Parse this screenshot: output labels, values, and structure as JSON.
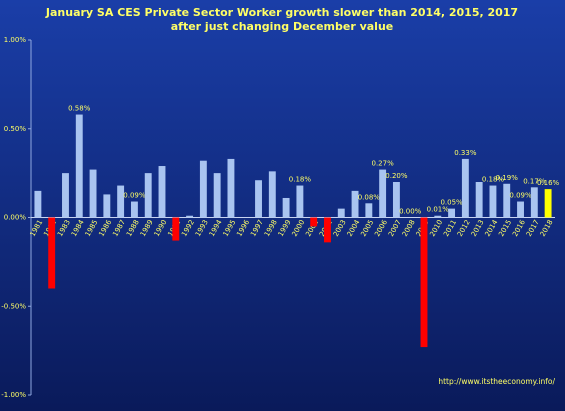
{
  "chart_data": {
    "type": "bar",
    "title": "January SA CES Private Sector Worker growth slower than 2014, 2015, 2017",
    "subtitle": "after just changing December value",
    "source": "http://www.itstheeconomy.info/",
    "categories": [
      "1981",
      "1982",
      "1983",
      "1984",
      "1985",
      "1986",
      "1987",
      "1988",
      "1989",
      "1990",
      "1991",
      "1992",
      "1993",
      "1994",
      "1995",
      "1996",
      "1997",
      "1998",
      "1999",
      "2000",
      "2001",
      "2002",
      "2003",
      "2004",
      "2005",
      "2006",
      "2007",
      "2008",
      "2009",
      "2010",
      "2011",
      "2012",
      "2013",
      "2014",
      "2015",
      "2016",
      "2017",
      "2018"
    ],
    "values": [
      0.15,
      -0.4,
      0.25,
      0.58,
      0.27,
      0.13,
      0.18,
      0.09,
      0.25,
      0.29,
      -0.13,
      0.01,
      0.32,
      0.25,
      0.33,
      0,
      0.21,
      0.26,
      0.11,
      0.18,
      -0.05,
      -0.14,
      0.05,
      0.15,
      0.08,
      0.27,
      0.2,
      0.0,
      -0.73,
      0.01,
      0.05,
      0.33,
      0.2,
      0.18,
      0.19,
      0.09,
      0.17,
      0.16
    ],
    "value_labels": [
      null,
      null,
      null,
      "0.58%",
      null,
      null,
      null,
      "0.09%",
      null,
      null,
      null,
      null,
      null,
      null,
      null,
      null,
      null,
      null,
      null,
      "0.18%",
      null,
      null,
      null,
      null,
      "0.08%",
      "0.27%",
      "0.20%",
      "0.00%",
      null,
      "0.01%",
      "0.05%",
      "0.33%",
      null,
      "0.18%",
      "0.19%",
      "0.09%",
      "0.17%",
      "0.16%"
    ],
    "color": "#a9c4f0",
    "negative_color": "#ff0000",
    "highlight_color": "#ffff00",
    "highlight_index": 37,
    "ylim": [
      -1,
      1
    ],
    "yticks": [
      {
        "value": -1,
        "label": "-1.00%"
      },
      {
        "value": -0.5,
        "label": "-0.50%"
      },
      {
        "value": 0,
        "label": "0.00%"
      },
      {
        "value": 0.5,
        "label": "0.50%"
      },
      {
        "value": 1,
        "label": "1.00%"
      }
    ],
    "grid": false
  }
}
